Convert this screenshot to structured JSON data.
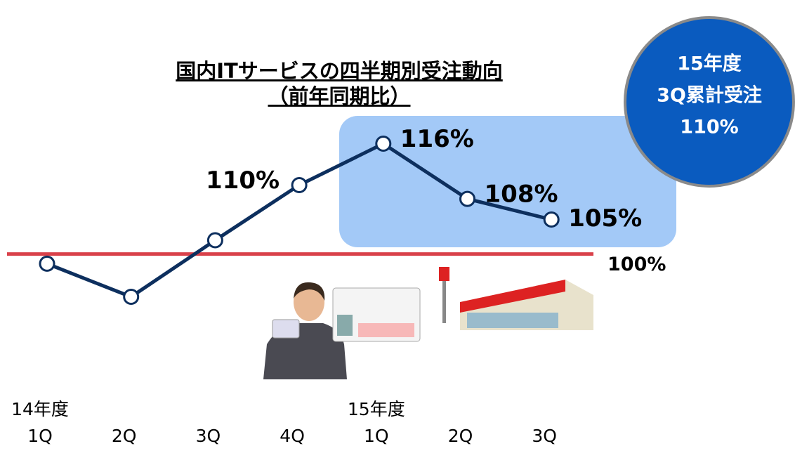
{
  "chart_data": {
    "type": "line",
    "title": "国内ITサービスの四半期別受注動向",
    "subtitle": "（前年同期比）",
    "categories": [
      "1Q",
      "2Q",
      "3Q",
      "4Q",
      "1Q",
      "2Q",
      "3Q"
    ],
    "year_labels": [
      "14年度",
      null,
      null,
      null,
      "15年度",
      null,
      null
    ],
    "values": [
      98.6,
      93.8,
      102,
      110,
      116,
      108,
      105
    ],
    "value_labels": [
      null,
      null,
      null,
      "110%",
      "116%",
      "108%",
      "105%"
    ],
    "color": "#0d2f5e",
    "ylim": [
      91,
      118.5
    ],
    "reference": {
      "value": 100,
      "label": "100%",
      "color": "#d9414a"
    },
    "badge": [
      "15年度",
      "3Q累計受注",
      "110%"
    ]
  }
}
